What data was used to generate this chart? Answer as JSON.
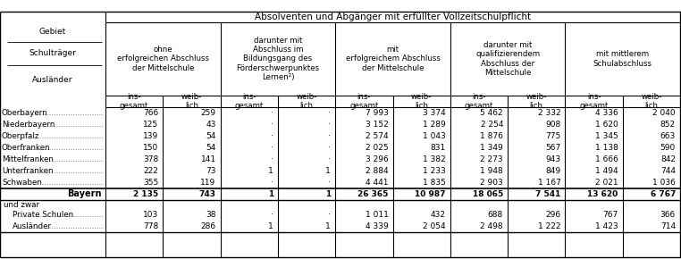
{
  "title_main": "Absolventen und Abgänger mit erfüllter Vollzeitschulpflicht",
  "group_headers": [
    "ohne\nerfolgreichen Abschluss\nder Mittelschule",
    "darunter mit\nAbschluss im\nBildungsgang des\nFörderschwerpunktes\nLernen²)",
    "mit\nerfolgreichem Abschluss\nder Mittelschule",
    "darunter mit\nqualifizierendem\nAbschluss der\nMittelschule",
    "mit mittlerem\nSchulabschluss"
  ],
  "sub_headers": [
    "ins-\ngesamt",
    "weib-\nlich",
    "ins-\ngesamt",
    "weib-\nlich",
    "ins-\ngesamt",
    "weib-\nlich",
    "ins-\ngesamt",
    "weib-\nlich",
    "ins-\ngesamt",
    "weib-\nlich"
  ],
  "left_header_lines": [
    "Gebiet",
    "Schulträger",
    "Ausländer"
  ],
  "rows": [
    {
      "label": "Oberbayern",
      "dots": true,
      "bold": false,
      "indent": 0,
      "vals": [
        "766",
        "259",
        "-",
        "-",
        "7 993",
        "3 374",
        "5 462",
        "2 332",
        "4 336",
        "2 040"
      ]
    },
    {
      "label": "Niederbayern",
      "dots": true,
      "bold": false,
      "indent": 0,
      "vals": [
        "125",
        "43",
        "-",
        "-",
        "3 152",
        "1 289",
        "2 254",
        "908",
        "1 620",
        "852"
      ]
    },
    {
      "label": "Oberpfalz",
      "dots": true,
      "bold": false,
      "indent": 0,
      "vals": [
        "139",
        "54",
        "-",
        "-",
        "2 574",
        "1 043",
        "1 876",
        "775",
        "1 345",
        "663"
      ]
    },
    {
      "label": "Oberfranken",
      "dots": true,
      "bold": false,
      "indent": 0,
      "vals": [
        "150",
        "54",
        "-",
        "-",
        "2 025",
        "831",
        "1 349",
        "567",
        "1 138",
        "590"
      ]
    },
    {
      "label": "Mittelfranken",
      "dots": true,
      "bold": false,
      "indent": 0,
      "vals": [
        "378",
        "141",
        "-",
        "-",
        "3 296",
        "1 382",
        "2 273",
        "943",
        "1 666",
        "842"
      ]
    },
    {
      "label": "Unterfranken",
      "dots": true,
      "bold": false,
      "indent": 0,
      "vals": [
        "222",
        "73",
        "1",
        "1",
        "2 884",
        "1 233",
        "1 948",
        "849",
        "1 494",
        "744"
      ]
    },
    {
      "label": "Schwaben",
      "dots": true,
      "bold": false,
      "indent": 0,
      "vals": [
        "355",
        "119",
        "-",
        "-",
        "4 441",
        "1 835",
        "2 903",
        "1 167",
        "2 021",
        "1 036"
      ]
    },
    {
      "label": "Bayern",
      "dots": false,
      "bold": true,
      "indent": 0,
      "vals": [
        "2 135",
        "743",
        "1",
        "1",
        "26 365",
        "10 987",
        "18 065",
        "7 541",
        "13 620",
        "6 767"
      ]
    },
    {
      "label": "und zwar",
      "dots": false,
      "bold": false,
      "indent": 0,
      "vals": [
        null,
        null,
        null,
        null,
        null,
        null,
        null,
        null,
        null,
        null
      ]
    },
    {
      "label": "Private Schulen",
      "dots": true,
      "bold": false,
      "indent": 1,
      "vals": [
        "103",
        "38",
        "-",
        "-",
        "1 011",
        "432",
        "688",
        "296",
        "767",
        "366"
      ]
    },
    {
      "label": "Ausländer",
      "dots": true,
      "bold": false,
      "indent": 1,
      "vals": [
        "778",
        "286",
        "1",
        "1",
        "4 339",
        "2 054",
        "2 498",
        "1 222",
        "1 423",
        "714"
      ]
    }
  ]
}
